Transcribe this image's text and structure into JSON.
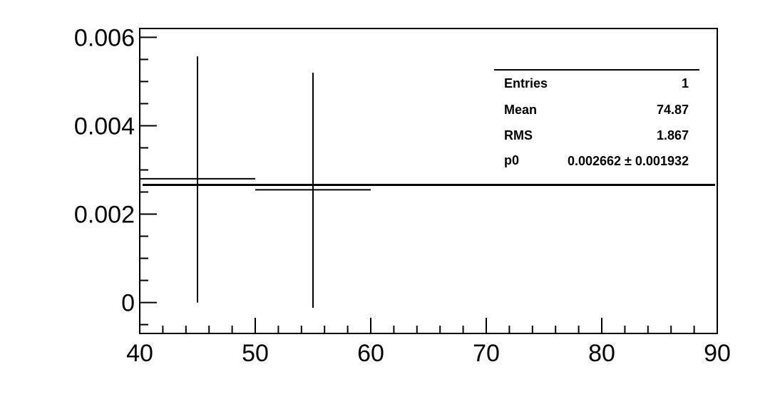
{
  "chart_data": {
    "type": "scatter",
    "title": "",
    "xlabel": "",
    "ylabel": "",
    "xlim": [
      40,
      90
    ],
    "ylim": [
      -0.0007,
      0.0062
    ],
    "x_ticks": [
      40,
      50,
      60,
      70,
      80,
      90
    ],
    "x_tick_labels": [
      "40",
      "50",
      "60",
      "70",
      "80",
      "90"
    ],
    "y_ticks": [
      0,
      0.002,
      0.004,
      0.006
    ],
    "y_tick_labels": [
      "0",
      "0.002",
      "0.004",
      "0.006"
    ],
    "grid": false,
    "points": [
      {
        "x": 45,
        "y": 0.0028,
        "x_err": 5,
        "y_low": 0.0,
        "y_high": 0.00557
      },
      {
        "x": 55,
        "y": 0.00255,
        "x_err": 5,
        "y_low": -0.00012,
        "y_high": 0.0052
      }
    ],
    "fit_line": {
      "parameter": "p0",
      "value": 0.002662
    },
    "stats_box": {
      "placement": "top-right",
      "rows": [
        {
          "label": "Entries",
          "value": "1"
        },
        {
          "label": "Mean",
          "value": "74.87"
        },
        {
          "label": "RMS",
          "value": "1.867"
        },
        {
          "label": "p0",
          "value": "0.002662 ± 0.001932"
        }
      ]
    }
  }
}
